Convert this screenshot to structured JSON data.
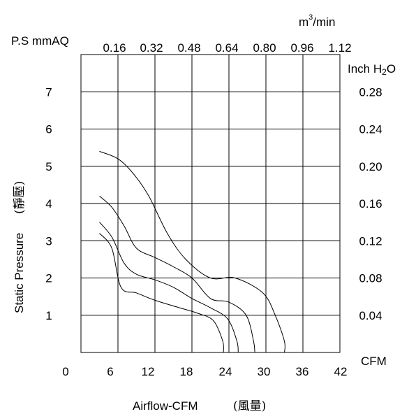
{
  "chart_data": {
    "type": "line",
    "title": "",
    "xlabel": "Airflow-CFM",
    "xlabel_cjk": "(風量)",
    "ylabel": "Static Pressure",
    "ylabel_cjk": "(靜壓)",
    "left_axis_title": "P.S mmAQ",
    "right_axis_title_main": "Inch H",
    "right_axis_title_sub": "2",
    "right_axis_title_end": "O",
    "top_axis_title_base": "m",
    "top_axis_title_sup": "3",
    "top_axis_title_end": "/min",
    "bottom_axis_unit": "CFM",
    "xlim": [
      0,
      42
    ],
    "ylim": [
      0,
      8
    ],
    "grid": true,
    "x_ticks": [
      "0",
      "6",
      "12",
      "18",
      "24",
      "30",
      "36",
      "42"
    ],
    "y_ticks_left": [
      "1",
      "2",
      "3",
      "4",
      "5",
      "6",
      "7"
    ],
    "y_ticks_right": [
      "0.04",
      "0.08",
      "0.12",
      "0.16",
      "0.20",
      "0.24",
      "0.28"
    ],
    "x_ticks_top": [
      "0.16",
      "0.32",
      "0.48",
      "0.64",
      "0.80",
      "0.96",
      "1.12"
    ],
    "series": [
      {
        "x": [
          3,
          6,
          8.5,
          11,
          14,
          17,
          21,
          25,
          29.5,
          31.5,
          33,
          33
        ],
        "y": [
          5.4,
          5.2,
          4.8,
          4.2,
          3.2,
          2.5,
          2.0,
          2.0,
          1.6,
          1.0,
          0.3,
          0
        ]
      },
      {
        "x": [
          3,
          5,
          7,
          9,
          12,
          15,
          18,
          21,
          24,
          26.8,
          28,
          28.2
        ],
        "y": [
          4.2,
          3.9,
          3.4,
          2.8,
          2.55,
          2.3,
          2.0,
          1.45,
          1.35,
          1.0,
          0.3,
          0
        ]
      },
      {
        "x": [
          3,
          5,
          7,
          9,
          12,
          15,
          18,
          21,
          23.8,
          25.3,
          25.5
        ],
        "y": [
          3.5,
          3.1,
          2.4,
          2.1,
          1.95,
          1.75,
          1.45,
          1.2,
          0.9,
          0.3,
          0
        ]
      },
      {
        "x": [
          3,
          5,
          6.5,
          9,
          12,
          16,
          19,
          21.5,
          23,
          23.1
        ],
        "y": [
          3.2,
          2.8,
          1.75,
          1.6,
          1.4,
          1.2,
          1.05,
          0.85,
          0.3,
          0
        ]
      }
    ]
  }
}
